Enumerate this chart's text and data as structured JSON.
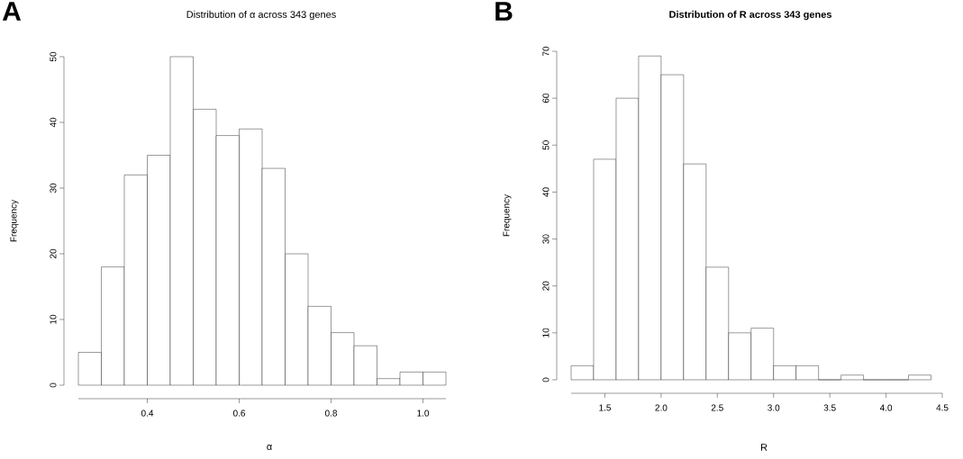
{
  "chart_data": [
    {
      "type": "histogram",
      "title": "Distribution of α across 343 genes",
      "xlabel": "α",
      "ylabel": "Frequency",
      "annotations": [
        "A"
      ],
      "bins": [
        0.25,
        0.3,
        0.35,
        0.4,
        0.45,
        0.5,
        0.55,
        0.6,
        0.65,
        0.7,
        0.75,
        0.8,
        0.85,
        0.9,
        0.95,
        1.0,
        1.05
      ],
      "values": [
        5,
        18,
        32,
        35,
        50,
        42,
        38,
        39,
        33,
        20,
        12,
        8,
        6,
        1,
        2,
        2
      ],
      "color": "#ffffff",
      "xlim": [
        0.25,
        1.05
      ],
      "ylim": [
        0,
        50
      ],
      "xticks": [
        0.4,
        0.6,
        0.8,
        {
          "value": 1.0,
          "label": "1.0"
        }
      ],
      "yticks": [
        0,
        10,
        20,
        30,
        40,
        50
      ]
    },
    {
      "type": "histogram",
      "title": "**Distribution of R across 343 genes**",
      "xlabel": "R",
      "ylabel": "Frequency",
      "annotations": [
        "B"
      ],
      "bins": [
        1.2,
        1.4,
        1.6,
        1.8,
        2.0,
        2.2,
        2.4,
        2.6,
        2.8,
        3.0,
        3.2,
        3.4,
        3.6,
        3.8,
        4.0,
        4.2,
        4.4
      ],
      "values": [
        3,
        47,
        60,
        69,
        65,
        46,
        24,
        10,
        11,
        3,
        3,
        0,
        1,
        0,
        0,
        1
      ],
      "color": "#ffffff",
      "xlim": [
        1.2,
        4.5
      ],
      "ylim": [
        0,
        70
      ],
      "xticks": [
        1.5,
        {
          "value": 2.0,
          "label": "2.0"
        },
        2.5,
        {
          "value": 3.0,
          "label": "3.0"
        },
        3.5,
        {
          "value": 4.0,
          "label": "4.0"
        },
        4.5
      ],
      "yticks": [
        0,
        10,
        20,
        30,
        40,
        50,
        60,
        70
      ]
    }
  ]
}
